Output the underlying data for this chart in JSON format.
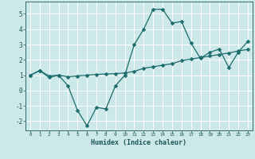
{
  "title": "",
  "xlabel": "Humidex (Indice chaleur)",
  "background_color": "#cce8e8",
  "grid_color": "#ffffff",
  "line_color": "#1a6b6b",
  "ylim": [
    -2.6,
    5.8
  ],
  "xlim": [
    -0.5,
    23.5
  ],
  "x_ticks": [
    0,
    1,
    2,
    3,
    4,
    5,
    6,
    7,
    8,
    9,
    10,
    11,
    12,
    13,
    14,
    15,
    16,
    17,
    18,
    19,
    20,
    21,
    22,
    23
  ],
  "y_ticks": [
    -2,
    -1,
    0,
    1,
    2,
    3,
    4,
    5
  ],
  "series1_y": [
    1.0,
    1.3,
    0.85,
    1.0,
    0.3,
    -1.3,
    -2.3,
    -1.1,
    -1.2,
    0.3,
    1.0,
    3.0,
    4.0,
    5.3,
    5.3,
    4.4,
    4.5,
    3.1,
    2.1,
    2.5,
    2.7,
    1.5,
    2.5,
    3.2
  ],
  "series2_y": [
    1.0,
    1.3,
    0.95,
    1.0,
    0.9,
    0.95,
    1.0,
    1.05,
    1.08,
    1.1,
    1.15,
    1.25,
    1.45,
    1.55,
    1.65,
    1.75,
    1.95,
    2.05,
    2.15,
    2.25,
    2.35,
    2.45,
    2.58,
    2.68
  ],
  "markersize": 2.5,
  "linewidth": 0.9
}
